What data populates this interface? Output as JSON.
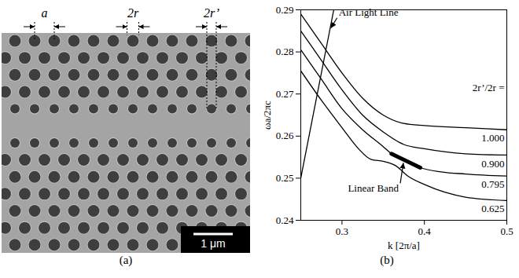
{
  "image_panel": {
    "caption": "(a)",
    "dimension_labels": [
      "a",
      "2r",
      "2r’"
    ],
    "scale_bar": "1 μm"
  },
  "chart_data": {
    "type": "line",
    "caption": "(b)",
    "x_label": "k [2π/a]",
    "y_label": "ωa/2πc",
    "xlim": [
      0.25,
      0.5
    ],
    "xticks": [
      0.3,
      0.4,
      0.5
    ],
    "ylim": [
      0.24,
      0.29
    ],
    "yticks": [
      0.24,
      0.25,
      0.26,
      0.27,
      0.28,
      0.29
    ],
    "grid": false,
    "legend_title": "2r’/2r =",
    "series": [
      {
        "name": "1.000",
        "color": "#000000",
        "x": [
          0.25,
          0.275,
          0.3,
          0.325,
          0.35,
          0.375,
          0.4,
          0.45,
          0.5
        ],
        "values": [
          0.289,
          0.282,
          0.275,
          0.269,
          0.265,
          0.263,
          0.2625,
          0.262,
          0.2615
        ]
      },
      {
        "name": "0.900",
        "color": "#000000",
        "x": [
          0.25,
          0.275,
          0.3,
          0.325,
          0.35,
          0.375,
          0.4,
          0.45,
          0.5
        ],
        "values": [
          0.285,
          0.278,
          0.271,
          0.265,
          0.261,
          0.258,
          0.257,
          0.2558,
          0.2555
        ]
      },
      {
        "name": "0.795",
        "color": "#000000",
        "x": [
          0.25,
          0.275,
          0.3,
          0.325,
          0.35,
          0.36,
          0.37,
          0.38,
          0.395,
          0.42,
          0.45,
          0.5
        ],
        "values": [
          0.2805,
          0.2735,
          0.2665,
          0.2615,
          0.2575,
          0.2558,
          0.2548,
          0.2538,
          0.2525,
          0.2515,
          0.251,
          0.2505
        ]
      },
      {
        "name": "0.625",
        "color": "#000000",
        "x": [
          0.25,
          0.275,
          0.3,
          0.32,
          0.335,
          0.35,
          0.365,
          0.38,
          0.4,
          0.45,
          0.5
        ],
        "values": [
          0.2755,
          0.2685,
          0.262,
          0.257,
          0.2545,
          0.254,
          0.253,
          0.2505,
          0.2485,
          0.2455,
          0.2447
        ]
      }
    ],
    "light_line": {
      "label": "Air Light Line",
      "color": "#000000",
      "x": [
        0.25,
        0.29
      ],
      "values": [
        0.25,
        0.29
      ],
      "arrow_to": {
        "x": 0.285,
        "y": 0.285
      }
    },
    "linear_band": {
      "label": "Linear Band",
      "color": "#000000",
      "x": [
        0.36,
        0.395
      ],
      "values": [
        0.2558,
        0.2525
      ],
      "arrow_to": {
        "x": 0.375,
        "y": 0.2543
      }
    }
  }
}
